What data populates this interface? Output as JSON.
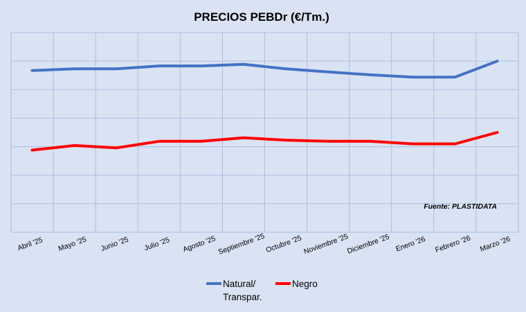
{
  "chart_data": {
    "type": "line",
    "title": "PRECIOS PEBDr (€/Tm.)",
    "categories": [
      "Abril '25",
      "Mayo '25",
      "Junio '25",
      "Julio '25",
      "Agosto '25",
      "Septiembre '25",
      "Octubre '25",
      "Noviembre '25",
      "Diciembre '25",
      "Enero '26",
      "Febrero '26",
      "Marzo '26"
    ],
    "series": [
      {
        "name": "Natural/ Transpar.",
        "color": "#4472c4",
        "values": [
          4.67,
          4.73,
          4.73,
          4.83,
          4.83,
          4.89,
          4.73,
          4.62,
          4.52,
          4.44,
          4.44,
          5.0
        ]
      },
      {
        "name": "Negro",
        "color": "#ff0000",
        "values": [
          1.88,
          2.04,
          1.96,
          2.19,
          2.19,
          2.31,
          2.23,
          2.19,
          2.19,
          2.1,
          2.1,
          2.5
        ]
      }
    ],
    "ylim": [
      -1,
      6
    ],
    "y_tick_labels": "hidden",
    "grid": true,
    "legend": "bottom",
    "annotation": "Fuente: PLASTIDATA"
  }
}
